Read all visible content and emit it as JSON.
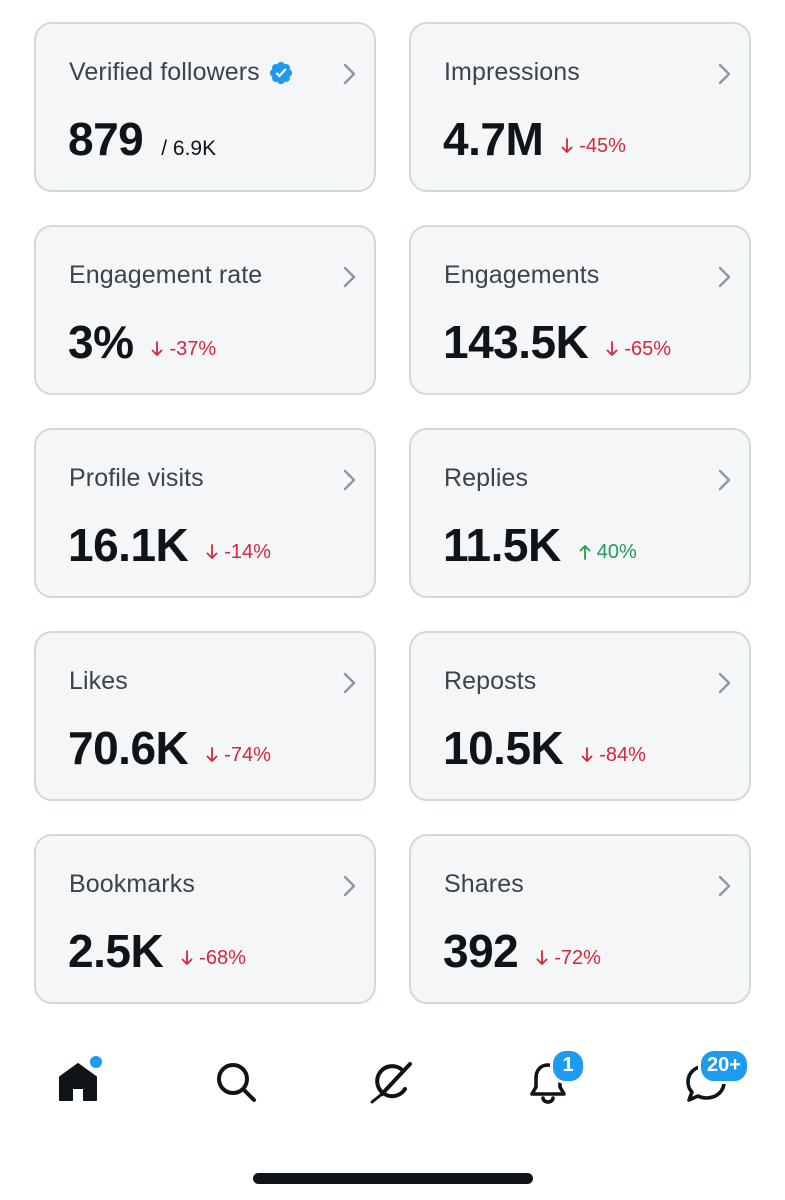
{
  "cards": [
    {
      "title": "Verified followers",
      "value": "879",
      "suffix": "/ 6.9K",
      "verified": true
    },
    {
      "title": "Impressions",
      "value": "4.7M",
      "delta": "-45%",
      "direction": "down"
    },
    {
      "title": "Engagement rate",
      "value": "3%",
      "delta": "-37%",
      "direction": "down"
    },
    {
      "title": "Engagements",
      "value": "143.5K",
      "delta": "-65%",
      "direction": "down"
    },
    {
      "title": "Profile visits",
      "value": "16.1K",
      "delta": "-14%",
      "direction": "down"
    },
    {
      "title": "Replies",
      "value": "11.5K",
      "delta": "40%",
      "direction": "up"
    },
    {
      "title": "Likes",
      "value": "70.6K",
      "delta": "-74%",
      "direction": "down"
    },
    {
      "title": "Reposts",
      "value": "10.5K",
      "delta": "-84%",
      "direction": "down"
    },
    {
      "title": "Bookmarks",
      "value": "2.5K",
      "delta": "-68%",
      "direction": "down"
    },
    {
      "title": "Shares",
      "value": "392",
      "delta": "-72%",
      "direction": "down"
    }
  ],
  "tabbar": {
    "home_icon": "home-icon",
    "search_icon": "search-icon",
    "grok_icon": "grok-icon",
    "notifications_icon": "bell-icon",
    "notifications_badge": "1",
    "messages_icon": "messages-icon",
    "messages_badge": "20+"
  },
  "colors": {
    "accent": "#1d9bf0",
    "down": "#d7263d",
    "up": "#1f9d55"
  }
}
